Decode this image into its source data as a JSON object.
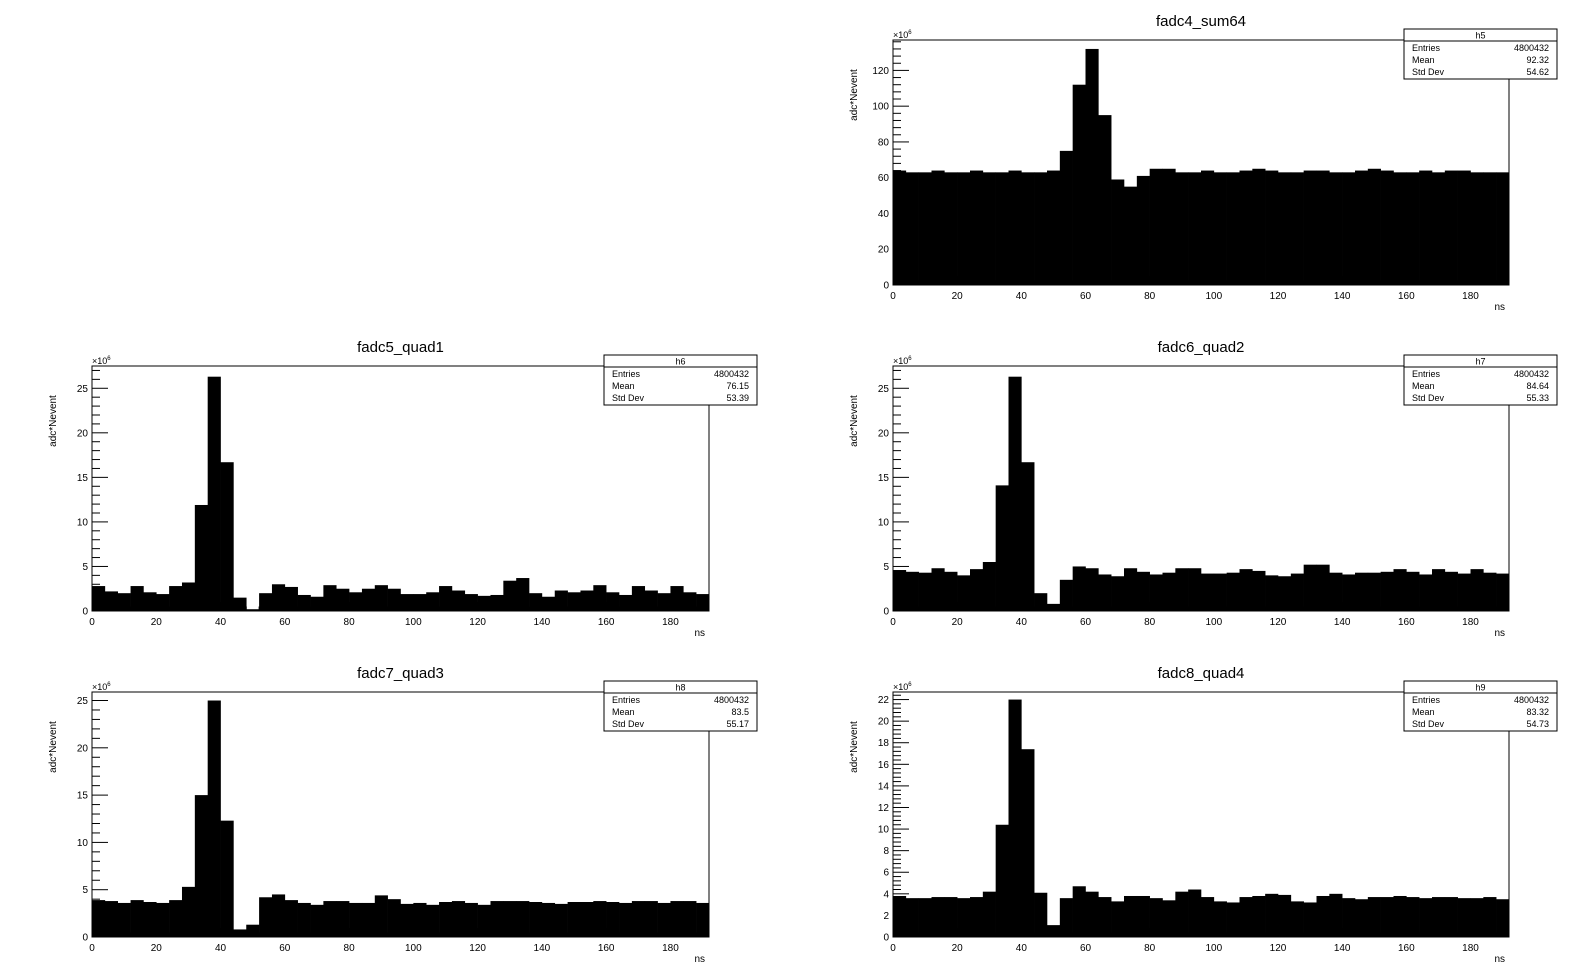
{
  "chart_data": [
    {
      "type": "bar",
      "title": "fadc4_sum64",
      "xlabel": "ns",
      "ylabel": "adc*Nevent",
      "y_exponent_label": "×10",
      "y_exponent": "6",
      "xlim": [
        0,
        192
      ],
      "ylim": [
        0,
        137
      ],
      "x_ticks": [
        0,
        20,
        40,
        60,
        80,
        100,
        120,
        140,
        160,
        180
      ],
      "y_ticks": [
        0,
        20,
        40,
        60,
        80,
        100,
        120
      ],
      "bin_width": 4,
      "values": [
        64,
        63,
        63,
        64,
        63,
        63,
        64,
        63,
        63,
        64,
        63,
        63,
        64,
        75,
        112,
        132,
        95,
        59,
        55,
        61,
        65,
        65,
        63,
        63,
        64,
        63,
        63,
        64,
        65,
        64,
        63,
        63,
        64,
        64,
        63,
        63,
        64,
        65,
        64,
        63,
        63,
        64,
        63,
        64,
        64,
        63,
        63,
        63
      ],
      "stats": {
        "name": "h5",
        "rows": [
          [
            "Entries",
            "4800432"
          ],
          [
            "Mean",
            "92.32"
          ],
          [
            "Std Dev",
            "54.62"
          ]
        ]
      }
    },
    {
      "type": "bar",
      "title": "fadc5_quad1",
      "xlabel": "ns",
      "ylabel": "adc*Nevent",
      "y_exponent_label": "×10",
      "y_exponent": "6",
      "xlim": [
        0,
        192
      ],
      "ylim": [
        0,
        27.5
      ],
      "x_ticks": [
        0,
        20,
        40,
        60,
        80,
        100,
        120,
        140,
        160,
        180
      ],
      "y_ticks": [
        0,
        5,
        10,
        15,
        20,
        25
      ],
      "bin_width": 4,
      "values": [
        2.8,
        2.2,
        2.0,
        2.8,
        2.1,
        1.9,
        2.8,
        3.2,
        11.9,
        26.3,
        16.7,
        1.5,
        0.2,
        2.0,
        3.0,
        2.7,
        1.8,
        1.6,
        2.9,
        2.5,
        2.1,
        2.5,
        2.9,
        2.5,
        1.9,
        1.9,
        2.1,
        2.8,
        2.3,
        1.9,
        1.7,
        1.8,
        3.4,
        3.7,
        2.0,
        1.6,
        2.3,
        2.1,
        2.3,
        2.9,
        2.1,
        1.8,
        2.8,
        2.3,
        2.0,
        2.8,
        2.1,
        1.9
      ],
      "stats": {
        "name": "h6",
        "rows": [
          [
            "Entries",
            "4800432"
          ],
          [
            "Mean",
            "76.15"
          ],
          [
            "Std Dev",
            "53.39"
          ]
        ]
      }
    },
    {
      "type": "bar",
      "title": "fadc6_quad2",
      "xlabel": "ns",
      "ylabel": "adc*Nevent",
      "y_exponent_label": "×10",
      "y_exponent": "6",
      "xlim": [
        0,
        192
      ],
      "ylim": [
        0,
        27.5
      ],
      "x_ticks": [
        0,
        20,
        40,
        60,
        80,
        100,
        120,
        140,
        160,
        180
      ],
      "y_ticks": [
        0,
        5,
        10,
        15,
        20,
        25
      ],
      "bin_width": 4,
      "values": [
        4.6,
        4.4,
        4.3,
        4.8,
        4.4,
        4.0,
        4.7,
        5.5,
        14.1,
        26.3,
        16.7,
        2.0,
        0.8,
        3.5,
        5.0,
        4.8,
        4.1,
        3.9,
        4.8,
        4.4,
        4.1,
        4.3,
        4.8,
        4.8,
        4.2,
        4.2,
        4.3,
        4.7,
        4.5,
        4.0,
        3.9,
        4.2,
        5.2,
        5.2,
        4.3,
        4.1,
        4.3,
        4.3,
        4.4,
        4.7,
        4.4,
        4.1,
        4.7,
        4.4,
        4.2,
        4.7,
        4.3,
        4.2
      ],
      "stats": {
        "name": "h7",
        "rows": [
          [
            "Entries",
            "4800432"
          ],
          [
            "Mean",
            "84.64"
          ],
          [
            "Std Dev",
            "55.33"
          ]
        ]
      }
    },
    {
      "type": "bar",
      "title": "fadc7_quad3",
      "xlabel": "ns",
      "ylabel": "adc*Nevent",
      "y_exponent_label": "×10",
      "y_exponent": "6",
      "xlim": [
        0,
        192
      ],
      "ylim": [
        0,
        25.9
      ],
      "x_ticks": [
        0,
        20,
        40,
        60,
        80,
        100,
        120,
        140,
        160,
        180
      ],
      "y_ticks": [
        0,
        5,
        10,
        15,
        20,
        25
      ],
      "bin_width": 4,
      "values": [
        3.9,
        3.8,
        3.6,
        3.9,
        3.7,
        3.6,
        3.9,
        5.3,
        15.0,
        25.0,
        12.3,
        0.8,
        1.3,
        4.2,
        4.5,
        3.9,
        3.6,
        3.4,
        3.8,
        3.8,
        3.6,
        3.6,
        4.4,
        4.0,
        3.5,
        3.6,
        3.4,
        3.7,
        3.8,
        3.6,
        3.4,
        3.8,
        3.8,
        3.8,
        3.7,
        3.6,
        3.5,
        3.7,
        3.7,
        3.8,
        3.7,
        3.6,
        3.8,
        3.8,
        3.6,
        3.8,
        3.8,
        3.6
      ],
      "stats": {
        "name": "h8",
        "rows": [
          [
            "Entries",
            "4800432"
          ],
          [
            "Mean",
            "83.5"
          ],
          [
            "Std Dev",
            "55.17"
          ]
        ]
      }
    },
    {
      "type": "bar",
      "title": "fadc8_quad4",
      "xlabel": "ns",
      "ylabel": "adc*Nevent",
      "y_exponent_label": "×10",
      "y_exponent": "6",
      "xlim": [
        0,
        192
      ],
      "ylim": [
        0,
        22.7
      ],
      "x_ticks": [
        0,
        20,
        40,
        60,
        80,
        100,
        120,
        140,
        160,
        180
      ],
      "y_ticks": [
        0,
        2,
        4,
        6,
        8,
        10,
        12,
        14,
        16,
        18,
        20,
        22
      ],
      "bin_width": 4,
      "values": [
        3.8,
        3.6,
        3.6,
        3.7,
        3.7,
        3.6,
        3.7,
        4.2,
        10.4,
        22.0,
        17.4,
        4.1,
        1.1,
        3.6,
        4.7,
        4.2,
        3.7,
        3.3,
        3.8,
        3.8,
        3.6,
        3.4,
        4.2,
        4.4,
        3.7,
        3.3,
        3.2,
        3.7,
        3.8,
        4.0,
        3.9,
        3.3,
        3.2,
        3.8,
        4.0,
        3.6,
        3.5,
        3.7,
        3.7,
        3.8,
        3.7,
        3.6,
        3.7,
        3.7,
        3.6,
        3.6,
        3.7,
        3.5
      ],
      "stats": {
        "name": "h9",
        "rows": [
          [
            "Entries",
            "4800432"
          ],
          [
            "Mean",
            "83.32"
          ],
          [
            "Std Dev",
            "54.73"
          ]
        ]
      }
    }
  ]
}
